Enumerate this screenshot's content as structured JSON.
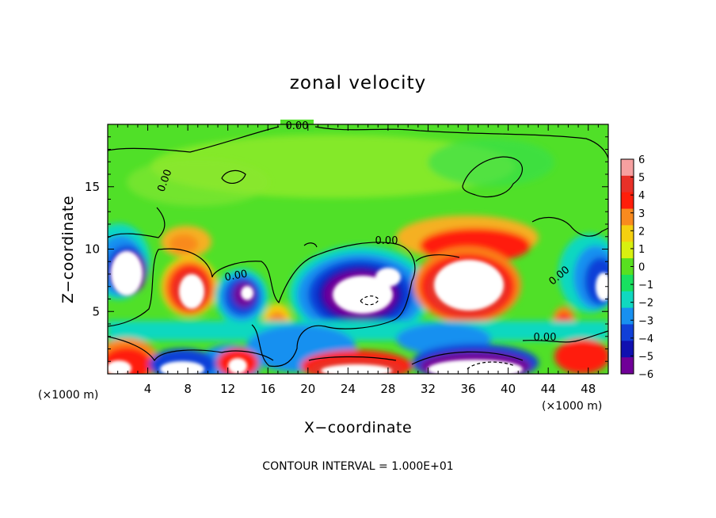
{
  "chart_data": {
    "type": "heatmap",
    "title": "zonal velocity",
    "xlabel": "X−coordinate",
    "ylabel": "Z−coordinate",
    "x_unit_left": "(×1000 m)",
    "x_unit_right": "(×1000 m)",
    "xlim": [
      0,
      50
    ],
    "ylim": [
      0,
      20
    ],
    "xticks": [
      4,
      8,
      12,
      16,
      20,
      24,
      28,
      32,
      36,
      40,
      44,
      48
    ],
    "yticks": [
      5,
      10,
      15
    ],
    "colorbar": {
      "levels": [
        6,
        5,
        4,
        3,
        2,
        1,
        0,
        -1,
        -2,
        -3,
        -4,
        -5,
        -6
      ],
      "labels": [
        "6",
        "5",
        "4",
        "3",
        "2",
        "1",
        "0",
        "−1",
        "−2",
        "−3",
        "−4",
        "−5",
        "−6"
      ],
      "colors": [
        "#f6a0a0",
        "#e83028",
        "#ff1e0a",
        "#f98a1e",
        "#f5d010",
        "#d8f010",
        "#58e020",
        "#18e060",
        "#10d8c0",
        "#1890f0",
        "#1040d8",
        "#1010b0",
        "#700098"
      ]
    },
    "contour_labels": [
      "0.00",
      "0.00",
      "0.00",
      "0.00",
      "0.00",
      "0.00"
    ],
    "contour_interval": "CONTOUR INTERVAL = 1.000E+01",
    "legend_placement": "right",
    "grid": false
  }
}
